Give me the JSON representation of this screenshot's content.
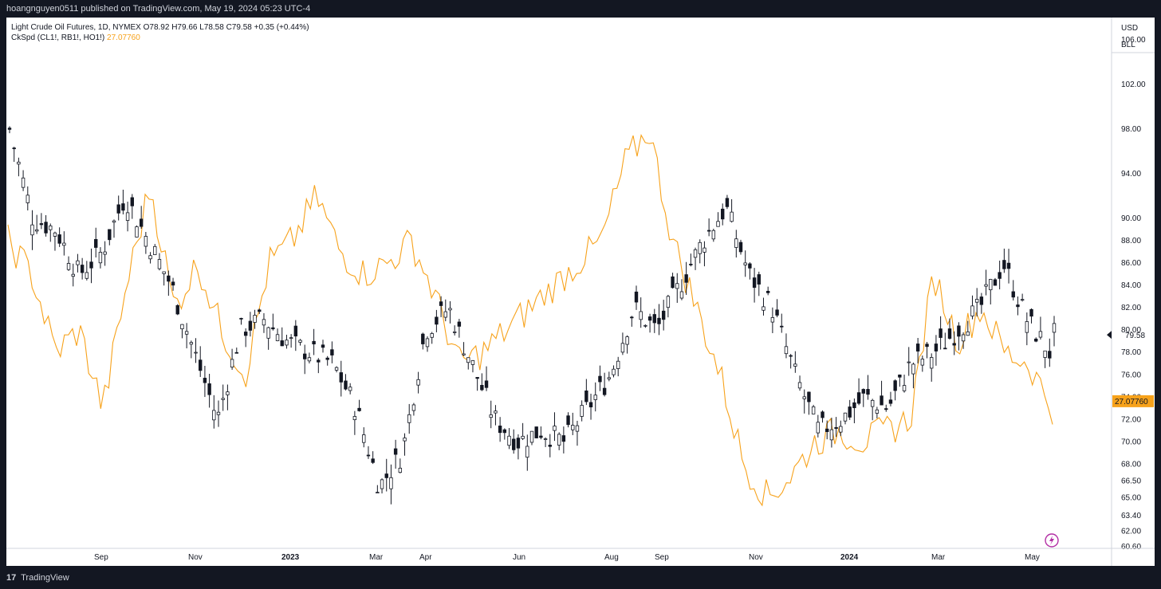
{
  "header": {
    "published": "hoangnguyen0511 published on TradingView.com, May 19, 2024 05:23 UTC-4"
  },
  "legend": {
    "main": "Light Crude Oil Futures, 1D, NYMEX  O78.92  H79.66  L78.58  C79.58  +0.35 (+0.44%)",
    "study_name": "CkSpd (CL1!, RB1!, HO1!)",
    "study_value": "27.07760"
  },
  "axis_controls": {
    "currency": "USD",
    "unit": "BLL"
  },
  "footer": {
    "brand": "TradingView",
    "logo_glyph": "17"
  },
  "colors": {
    "candle": "#131722",
    "spread": "#f7a21b",
    "price_tag": "#f7a21b"
  },
  "icons": {
    "lightning": "lightning-icon",
    "logo": "tradingview-logo-icon"
  },
  "chart_data": {
    "type": "line",
    "title": "Light Crude Oil Futures, 1D, NYMEX",
    "x_ticks": [
      "Sep",
      "Nov",
      "2023",
      "Mar",
      "Apr",
      "Jun",
      "Aug",
      "Sep",
      "Nov",
      "2024",
      "Mar",
      "May"
    ],
    "y_ticks": [
      "106.00",
      "102.00",
      "98.00",
      "94.00",
      "90.00",
      "88.00",
      "86.00",
      "84.00",
      "82.00",
      "80.00",
      "78.00",
      "76.00",
      "74.00",
      "72.00",
      "70.00",
      "68.00",
      "66.50",
      "65.00",
      "63.40",
      "62.00",
      "60.60"
    ],
    "ylim": [
      60.6,
      106
    ],
    "last_price": "79.58",
    "last_spread_label": "27.07760",
    "series": [
      {
        "name": "Light Crude Oil Futures",
        "style": "candles-close-line",
        "x": [
          "Aug 1",
          "Aug 15",
          "Sep 1",
          "Sep 15",
          "Oct 1",
          "Oct 15",
          "Nov 1",
          "Nov 15",
          "Dec 1",
          "Dec 15",
          "Jan 1",
          "Jan 15",
          "Feb 1",
          "Feb 15",
          "Mar 1",
          "Mar 15",
          "Mar 20",
          "Mar 28",
          "Apr 1",
          "Apr 15",
          "May 1",
          "May 15",
          "Jun 1",
          "Jun 15",
          "Jul 1",
          "Jul 15",
          "Aug 1",
          "Aug 15",
          "Sep 1",
          "Sep 15",
          "Sep 28",
          "Oct 15",
          "Nov 1",
          "Nov 15",
          "Dec 1",
          "Dec 15",
          "Jan 1",
          "Jan 15",
          "Feb 1",
          "Feb 15",
          "Mar 1",
          "Mar 15",
          "Apr 1",
          "Apr 12",
          "May 1",
          "May 15",
          "May 17"
        ],
        "values": [
          98,
          90,
          89,
          85,
          87,
          92,
          88,
          84,
          78,
          72,
          80,
          81,
          79,
          78,
          77,
          73,
          66,
          69,
          80,
          82,
          77,
          72,
          70,
          71,
          70,
          73,
          76,
          82,
          80,
          84,
          88,
          91,
          85,
          82,
          76,
          71,
          72,
          74,
          73,
          77,
          78,
          80,
          82,
          86,
          81,
          78,
          79.58
        ]
      },
      {
        "name": "CkSpd (CL1!, RB1!, HO1!)",
        "style": "line",
        "x": [
          "Aug 1",
          "Aug 15",
          "Sep 1",
          "Sep 15",
          "Oct 1",
          "Oct 10",
          "Oct 25",
          "Nov 1",
          "Nov 15",
          "Dec 1",
          "Dec 15",
          "Jan 1",
          "Jan 15",
          "Feb 1",
          "Feb 15",
          "Mar 1",
          "Mar 15",
          "Apr 1",
          "Apr 15",
          "May 1",
          "May 15",
          "Jun 1",
          "Jun 15",
          "Jul 1",
          "Jul 15",
          "Aug 1",
          "Aug 15",
          "Sep 1",
          "Sep 15",
          "Oct 1",
          "Oct 15",
          "Nov 1",
          "Nov 15",
          "Dec 1",
          "Dec 15",
          "Jan 1",
          "Jan 15",
          "Feb 1",
          "Feb 15",
          "Mar 1",
          "Mar 15",
          "Apr 1",
          "Apr 15",
          "May 1",
          "May 15",
          "May 17"
        ],
        "values": [
          88,
          85,
          78,
          80,
          73,
          84,
          93,
          82,
          86,
          80,
          76,
          86,
          88,
          92,
          87,
          85,
          86,
          88,
          83,
          77,
          78,
          80,
          82,
          84,
          86,
          88,
          95,
          98,
          88,
          82,
          76,
          68,
          65,
          67,
          70,
          71,
          70,
          71,
          72,
          85,
          79,
          82,
          78,
          77,
          73,
          27.0776
        ],
        "note_scale": "overlay"
      }
    ]
  }
}
